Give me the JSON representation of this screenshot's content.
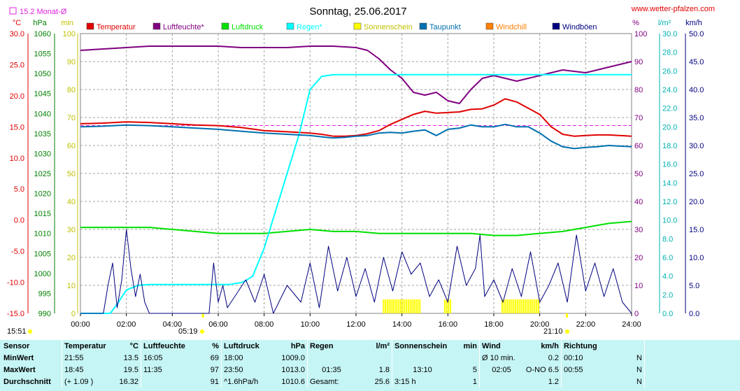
{
  "header": {
    "title": "Sonntag, 25.06.2017",
    "website": "www.wetter-pfalzen.com",
    "monthly_avg": "15.2 Monat-Ø"
  },
  "colors": {
    "temperature": "#e00000",
    "humidity": "#800080",
    "pressure": "#00e000",
    "rain": "#00ffff",
    "sunshine": "#ffff00",
    "dewpoint": "#0070b0",
    "windchill": "#ff8000",
    "gusts": "#000080",
    "monthly_avg_line": "#e020e0"
  },
  "chart_data": {
    "type": "line",
    "x_unit": "time of day",
    "x_ticks": [
      "00:00",
      "02:00",
      "04:00",
      "06:00",
      "08:00",
      "10:00",
      "12:00",
      "14:00",
      "16:00",
      "18:00",
      "20:00",
      "22:00",
      "24:00"
    ],
    "axes": {
      "temperature": {
        "unit": "°C",
        "ylim": [
          -15,
          30
        ],
        "ticks": [
          "30.0",
          "25.0",
          "20.0",
          "15.0",
          "10.0",
          "5.0",
          "0.0",
          "-5.0",
          "-10.0",
          "-15.0"
        ]
      },
      "pressure": {
        "unit": "hPa",
        "ylim": [
          990,
          1060
        ],
        "ticks": [
          "1060",
          "1055",
          "1050",
          "1045",
          "1040",
          "1035",
          "1030",
          "1025",
          "1020",
          "1015",
          "1010",
          "1005",
          "1000",
          "995",
          "990"
        ]
      },
      "sunshine": {
        "unit": "min",
        "ylim": [
          0,
          100
        ],
        "ticks": [
          "100",
          "90",
          "80",
          "70",
          "60",
          "50",
          "40",
          "30",
          "20",
          "10",
          "0"
        ]
      },
      "humidity": {
        "unit": "%",
        "ylim": [
          0,
          100
        ],
        "ticks": [
          "100",
          "90",
          "80",
          "70",
          "60",
          "50",
          "40",
          "30",
          "20",
          "10",
          "0"
        ]
      },
      "rain": {
        "unit": "l/m²",
        "ylim": [
          0,
          30
        ],
        "ticks": [
          "30.0",
          "28.0",
          "26.0",
          "24.0",
          "22.0",
          "20.0",
          "18.0",
          "16.0",
          "14.0",
          "12.0",
          "10.0",
          "8.0",
          "6.0",
          "4.0",
          "2.0",
          "0.0"
        ]
      },
      "wind": {
        "unit": "km/h",
        "ylim": [
          0,
          50
        ],
        "ticks": [
          "50.0",
          "45.0",
          "40.0",
          "35.0",
          "30.0",
          "25.0",
          "20.0",
          "15.0",
          "10.0",
          "5.0",
          "0.0"
        ]
      }
    },
    "legend": [
      {
        "name": "Temperatur",
        "color": "#e00000"
      },
      {
        "name": "Luftfeuchte*",
        "color": "#800080"
      },
      {
        "name": "Luftdruck",
        "color": "#00e000"
      },
      {
        "name": "Regen*",
        "color": "#00ffff"
      },
      {
        "name": "Sonnenschein",
        "color": "#ffff00"
      },
      {
        "name": "Taupunkt",
        "color": "#0070b0"
      },
      {
        "name": "Windchill",
        "color": "#ff8000"
      },
      {
        "name": "Windböen",
        "color": "#000080"
      }
    ],
    "monthly_avg_temperature": 15.2,
    "series": [
      {
        "name": "Temperatur",
        "axis": "temperature",
        "x": [
          0,
          1,
          2,
          3,
          4,
          5,
          6,
          7,
          8,
          9,
          10,
          10.5,
          11,
          11.5,
          12,
          12.5,
          13,
          13.5,
          14,
          14.5,
          15,
          15.5,
          16,
          16.5,
          17,
          17.5,
          18,
          18.5,
          19,
          19.5,
          20,
          20.5,
          21,
          21.5,
          22,
          22.5,
          23,
          24
        ],
        "y": [
          15.5,
          15.6,
          15.8,
          15.7,
          15.5,
          15.3,
          15.2,
          14.9,
          14.4,
          14.2,
          14.0,
          13.8,
          13.5,
          13.5,
          13.6,
          13.9,
          14.4,
          15.4,
          16.2,
          17.0,
          17.5,
          17.2,
          17.3,
          17.4,
          17.8,
          17.9,
          18.5,
          19.5,
          19.0,
          18.0,
          17.0,
          15.0,
          13.8,
          13.5,
          13.6,
          13.7,
          13.7,
          13.5
        ]
      },
      {
        "name": "Luftfeuchte*",
        "axis": "humidity",
        "x": [
          0,
          1,
          2,
          3,
          4,
          5,
          6,
          7,
          8,
          9,
          10,
          11,
          12,
          12.5,
          13,
          13.5,
          14,
          14.5,
          15,
          15.5,
          16,
          16.5,
          17,
          17.5,
          18,
          18.5,
          19,
          19.5,
          20,
          20.5,
          21,
          21.5,
          22,
          22.5,
          23,
          23.5,
          24
        ],
        "y": [
          94,
          94.5,
          95,
          95.5,
          95.5,
          95.5,
          95.5,
          95,
          95,
          95,
          95.5,
          95.5,
          95,
          94,
          91,
          87,
          84,
          79,
          78,
          79,
          76,
          75,
          80,
          84,
          85,
          84,
          83,
          84,
          85,
          86,
          87,
          86.5,
          86,
          87,
          88,
          89,
          90
        ]
      },
      {
        "name": "Luftdruck",
        "axis": "pressure",
        "x": [
          0,
          1,
          2,
          3,
          4,
          5,
          6,
          7,
          8,
          9,
          10,
          11,
          12,
          13,
          14,
          15,
          16,
          17,
          18,
          19,
          20,
          21,
          22,
          23,
          24
        ],
        "y": [
          1011.5,
          1011.5,
          1011.5,
          1011.5,
          1011.0,
          1010.5,
          1010.0,
          1010.0,
          1010.0,
          1010.5,
          1011.0,
          1010.5,
          1010.5,
          1010.0,
          1010.0,
          1010.0,
          1010.0,
          1010.0,
          1009.5,
          1009.5,
          1010.0,
          1010.5,
          1011.5,
          1012.5,
          1013.0
        ]
      },
      {
        "name": "Regen*",
        "axis": "rain",
        "x": [
          0,
          1.3,
          1.6,
          2.0,
          2.5,
          3,
          4,
          5,
          6,
          6.5,
          7,
          7.2,
          7.5,
          8,
          8.5,
          9,
          9.5,
          10,
          10.5,
          11,
          11.3,
          11.6,
          12,
          13,
          14,
          15,
          16,
          17,
          18,
          19,
          20,
          21,
          22,
          23,
          24
        ],
        "y": [
          0,
          0,
          1,
          2.5,
          3.0,
          3.1,
          3.1,
          3.1,
          3.1,
          3.1,
          3.3,
          3.5,
          4.0,
          7,
          11,
          15,
          19,
          24,
          25.4,
          25.6,
          25.6,
          25.6,
          25.6,
          25.6,
          25.6,
          25.6,
          25.6,
          25.6,
          25.6,
          25.6,
          25.6,
          25.6,
          25.6,
          25.6,
          25.6
        ]
      },
      {
        "name": "Taupunkt",
        "axis": "temperature",
        "x": [
          0,
          1,
          2,
          3,
          4,
          5,
          6,
          7,
          8,
          9,
          10,
          10.5,
          11,
          11.5,
          12,
          12.5,
          13,
          13.5,
          14,
          14.5,
          15,
          15.5,
          16,
          16.5,
          17,
          17.5,
          18,
          18.5,
          19,
          19.5,
          20,
          20.5,
          21,
          21.5,
          22,
          22.5,
          23,
          24
        ],
        "y": [
          15.0,
          15.1,
          15.3,
          15.2,
          15.0,
          14.8,
          14.6,
          14.3,
          14.0,
          13.8,
          13.6,
          13.4,
          13.2,
          13.3,
          13.5,
          13.6,
          14.0,
          14.1,
          14.0,
          14.3,
          14.5,
          13.6,
          14.6,
          14.8,
          15.3,
          15.0,
          15.0,
          15.4,
          15.0,
          15.0,
          14.0,
          12.7,
          11.8,
          11.5,
          11.7,
          11.8,
          12.0,
          11.8
        ]
      },
      {
        "name": "Windböen",
        "axis": "wind",
        "x": [
          0,
          1,
          1.2,
          1.4,
          1.6,
          1.8,
          2.0,
          2.2,
          2.4,
          2.6,
          2.8,
          3.0,
          5.6,
          5.8,
          6.0,
          6.2,
          6.4,
          7.2,
          7.6,
          8.0,
          8.4,
          9.0,
          9.6,
          10.0,
          10.4,
          10.8,
          11.2,
          11.6,
          12.0,
          12.4,
          12.8,
          13.2,
          13.6,
          14.0,
          14.4,
          14.8,
          15.2,
          15.6,
          16.0,
          16.4,
          16.8,
          17.2,
          17.4,
          17.6,
          18.0,
          18.4,
          18.8,
          19.2,
          19.6,
          20.0,
          20.4,
          20.8,
          21.2,
          21.6,
          22.0,
          22.4,
          22.8,
          23.2,
          23.6,
          24.0
        ],
        "y": [
          0,
          0,
          5,
          9,
          1,
          6,
          15,
          8,
          3,
          7,
          2,
          0,
          0,
          9,
          2,
          5,
          1,
          6,
          2,
          7,
          0,
          5,
          2,
          9,
          1,
          12,
          4,
          10,
          3,
          8,
          2,
          10,
          4,
          11,
          7,
          9,
          3,
          6,
          2,
          12,
          5,
          8,
          14,
          3,
          6,
          2,
          8,
          3,
          11,
          2,
          5,
          9,
          2,
          14,
          4,
          9,
          3,
          8,
          2,
          0
        ]
      }
    ],
    "sunshine_intervals": [
      [
        "13:10",
        "14:45"
      ],
      [
        "15:50",
        "16:05"
      ],
      [
        "18:20",
        "19:55"
      ]
    ],
    "markers": {
      "sunrise": "05:19",
      "sunset": "21:10",
      "now": "15:51"
    }
  },
  "stats": {
    "header": {
      "sensor": "Sensor",
      "temp": "Temperatur",
      "temp_unit": "°C",
      "hum": "Luftfeuchte",
      "hum_unit": "%",
      "press": "Luftdruck",
      "press_unit": "hPa",
      "rain": "Regen",
      "rain_unit": "l/m²",
      "sun": "Sonnenschein",
      "sun_unit": "min",
      "wind": "Wind",
      "wind_unit": "km/h",
      "dir": "Richtung"
    },
    "rows": [
      {
        "label": "MinWert",
        "temp_t": "21:55",
        "temp_v": "13.5",
        "hum_t": "16:05",
        "hum_v": "69",
        "press_t": "18:00",
        "press_v": "1009.0",
        "rain_t": "",
        "rain_v": "",
        "sun_t": "",
        "sun_v": "",
        "wind_t": "Ø 10 min.",
        "wind_v": "0.2",
        "dir_t": "00:10",
        "dir_v": "N"
      },
      {
        "label": "MaxWert",
        "temp_t": "18:45",
        "temp_v": "19.5",
        "hum_t": "11:35",
        "hum_v": "97",
        "press_t": "23:50",
        "press_v": "1013.0",
        "rain_t": "01:35",
        "rain_v": "1.8",
        "sun_t": "13:10",
        "sun_v": "5",
        "wind_t": "02:05",
        "wind_v": "O-NO 6.5",
        "dir_t": "00:55",
        "dir_v": "N"
      },
      {
        "label": "Durchschnitt",
        "temp_t": "(+ 1.09 )",
        "temp_v": "16.32",
        "hum_t": "",
        "hum_v": "91",
        "press_t": "^1.6hPa/h",
        "press_v": "1010.6",
        "rain_t": "Gesamt:",
        "rain_v": "25.6",
        "sun_t": "3:15 h",
        "sun_v": "1",
        "wind_t": "",
        "wind_v": "1.2",
        "dir_t": "",
        "dir_v": "N"
      }
    ]
  }
}
